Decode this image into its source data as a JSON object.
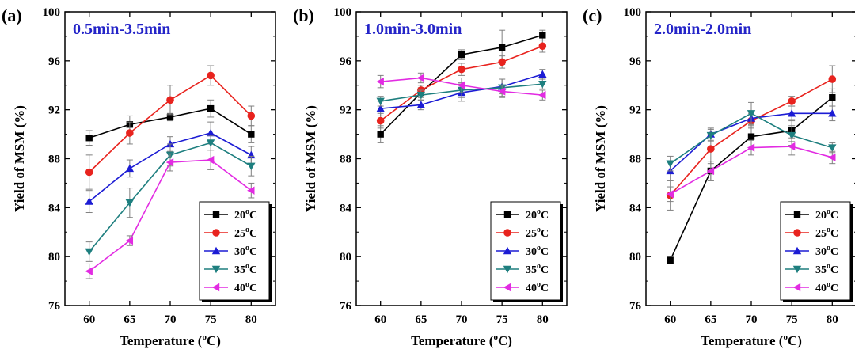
{
  "title_color": "#2424c8",
  "chart_data": [
    {
      "type": "line",
      "panel_label": "(a)",
      "title": "0.5min-3.5min",
      "xlabel": "Temperature (",
      "xlabel_sup": "o",
      "xlabel_end": "C)",
      "ylabel": "Yield of MSM (%)",
      "x": [
        60,
        65,
        70,
        75,
        80
      ],
      "xlim": [
        57,
        83
      ],
      "ylim": [
        76,
        100
      ],
      "yticks": [
        76,
        80,
        84,
        88,
        92,
        96,
        100
      ],
      "grid": false,
      "legend_position": "bottom-right",
      "series": [
        {
          "name": "20",
          "unit_sup": "o",
          "unit": "C",
          "color": "#000000",
          "marker": "square",
          "values": [
            89.7,
            90.8,
            91.4,
            92.1,
            90.0
          ],
          "errors": [
            0.6,
            0.7,
            0.3,
            0.7,
            0.7
          ]
        },
        {
          "name": "25",
          "unit_sup": "o",
          "unit": "C",
          "color": "#e8231e",
          "marker": "circle",
          "values": [
            86.9,
            90.1,
            92.8,
            94.8,
            91.5
          ],
          "errors": [
            1.4,
            0.9,
            1.2,
            0.8,
            0.8
          ]
        },
        {
          "name": "30",
          "unit_sup": "o",
          "unit": "C",
          "color": "#1c1cd4",
          "marker": "triangle-up",
          "values": [
            84.5,
            87.2,
            89.2,
            90.1,
            88.3
          ],
          "errors": [
            0.9,
            0.7,
            0.6,
            0.9,
            0.7
          ]
        },
        {
          "name": "35",
          "unit_sup": "o",
          "unit": "C",
          "color": "#1e7f7f",
          "marker": "triangle-down",
          "values": [
            80.4,
            84.4,
            88.3,
            89.3,
            87.4
          ],
          "errors": [
            0.8,
            1.2,
            0.9,
            0.6,
            0.8
          ]
        },
        {
          "name": "40",
          "unit_sup": "o",
          "unit": "C",
          "color": "#e22be2",
          "marker": "triangle-left",
          "values": [
            78.8,
            81.3,
            87.7,
            87.9,
            85.4
          ],
          "errors": [
            0.6,
            0.4,
            0.7,
            0.8,
            0.6
          ]
        }
      ]
    },
    {
      "type": "line",
      "panel_label": "(b)",
      "title": "1.0min-3.0min",
      "xlabel": "Temperature (",
      "xlabel_sup": "o",
      "xlabel_end": "C)",
      "ylabel": "Yield of MSM (%)",
      "x": [
        60,
        65,
        70,
        75,
        80
      ],
      "xlim": [
        57,
        83
      ],
      "ylim": [
        76,
        100
      ],
      "yticks": [
        76,
        80,
        84,
        88,
        92,
        96,
        100
      ],
      "grid": false,
      "legend_position": "bottom-right",
      "series": [
        {
          "name": "20",
          "unit_sup": "o",
          "unit": "C",
          "color": "#000000",
          "marker": "square",
          "values": [
            90.0,
            93.4,
            96.5,
            97.1,
            98.1
          ],
          "errors": [
            0.7,
            0.4,
            0.4,
            1.4,
            0.4
          ]
        },
        {
          "name": "25",
          "unit_sup": "o",
          "unit": "C",
          "color": "#e8231e",
          "marker": "circle",
          "values": [
            91.1,
            93.6,
            95.3,
            95.9,
            97.2
          ],
          "errors": [
            0.6,
            0.4,
            0.5,
            0.5,
            0.5
          ]
        },
        {
          "name": "30",
          "unit_sup": "o",
          "unit": "C",
          "color": "#1c1cd4",
          "marker": "triangle-up",
          "values": [
            92.1,
            92.4,
            93.4,
            93.9,
            94.9
          ],
          "errors": [
            0.6,
            0.4,
            0.7,
            0.6,
            0.4
          ]
        },
        {
          "name": "35",
          "unit_sup": "o",
          "unit": "C",
          "color": "#1e7f7f",
          "marker": "triangle-down",
          "values": [
            92.7,
            93.2,
            93.6,
            93.8,
            94.1
          ],
          "errors": [
            0.4,
            0.4,
            0.6,
            0.7,
            0.4
          ]
        },
        {
          "name": "40",
          "unit_sup": "o",
          "unit": "C",
          "color": "#e22be2",
          "marker": "triangle-left",
          "values": [
            94.3,
            94.6,
            94.0,
            93.5,
            93.2
          ],
          "errors": [
            0.5,
            0.4,
            0.6,
            0.5,
            0.4
          ]
        }
      ]
    },
    {
      "type": "line",
      "panel_label": "(c)",
      "title": "2.0min-2.0min",
      "xlabel": "Temperature (",
      "xlabel_sup": "o",
      "xlabel_end": "C)",
      "ylabel": "Yield of MSM (%)",
      "x": [
        60,
        65,
        70,
        75,
        80
      ],
      "xlim": [
        57,
        83
      ],
      "ylim": [
        76,
        100
      ],
      "yticks": [
        76,
        80,
        84,
        88,
        92,
        96,
        100
      ],
      "grid": false,
      "legend_position": "bottom-right",
      "series": [
        {
          "name": "20",
          "unit_sup": "o",
          "unit": "C",
          "color": "#000000",
          "marker": "square",
          "values": [
            79.7,
            87.0,
            89.8,
            90.3,
            93.0
          ],
          "errors": [
            0.3,
            0.8,
            0.9,
            0.9,
            0.7
          ]
        },
        {
          "name": "25",
          "unit_sup": "o",
          "unit": "C",
          "color": "#e8231e",
          "marker": "circle",
          "values": [
            85.0,
            88.8,
            91.1,
            92.7,
            94.5
          ],
          "errors": [
            1.2,
            1.2,
            0.6,
            0.4,
            1.1
          ]
        },
        {
          "name": "30",
          "unit_sup": "o",
          "unit": "C",
          "color": "#1c1cd4",
          "marker": "triangle-up",
          "values": [
            87.0,
            90.0,
            91.3,
            91.7,
            91.7
          ],
          "errors": [
            0.8,
            0.5,
            0.5,
            0.6,
            0.6
          ]
        },
        {
          "name": "35",
          "unit_sup": "o",
          "unit": "C",
          "color": "#1e7f7f",
          "marker": "triangle-down",
          "values": [
            87.6,
            89.9,
            91.7,
            89.9,
            88.9
          ],
          "errors": [
            0.6,
            0.5,
            0.9,
            0.8,
            0.4
          ]
        },
        {
          "name": "40",
          "unit_sup": "o",
          "unit": "C",
          "color": "#e22be2",
          "marker": "triangle-left",
          "values": [
            85.1,
            87.0,
            88.9,
            89.0,
            88.1
          ],
          "errors": [
            0.6,
            0.8,
            0.6,
            0.7,
            0.5
          ]
        }
      ]
    }
  ]
}
